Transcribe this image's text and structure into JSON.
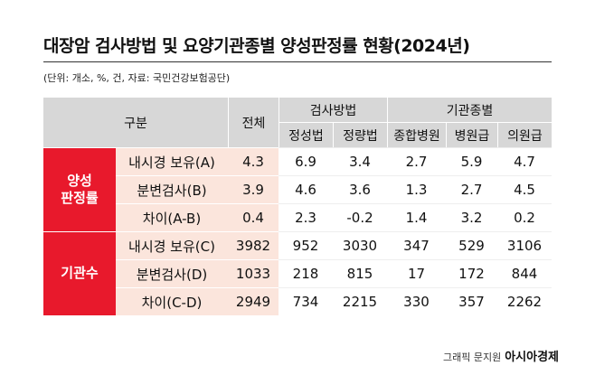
{
  "header": {
    "title": "대장암 검사방법 및 요양기관종별 양성판정률 현황(2024년)",
    "subtitle": "(단위: 개소, %, 건, 자료: 국민건강보험공단)"
  },
  "table": {
    "corner": "구분",
    "total": "전체",
    "groups": [
      {
        "label": "검사방법",
        "columns": [
          "정성법",
          "정량법"
        ]
      },
      {
        "label": "기관종별",
        "columns": [
          "종합병원",
          "병원급",
          "의원급"
        ]
      }
    ],
    "sections": [
      {
        "label": "양성\n판정률",
        "rows": [
          {
            "label": "내시경 보유(A)",
            "values": [
              4.3,
              6.9,
              3.4,
              2.7,
              5.9,
              4.7
            ]
          },
          {
            "label": "분변검사(B)",
            "values": [
              3.9,
              4.6,
              3.6,
              1.3,
              2.7,
              4.5
            ]
          },
          {
            "label": "차이(A-B)",
            "values": [
              0.4,
              2.3,
              -0.2,
              1.4,
              3.2,
              0.2
            ]
          }
        ]
      },
      {
        "label": "기관수",
        "rows": [
          {
            "label": "내시경 보유(C)",
            "values": [
              3982,
              952,
              3030,
              347,
              529,
              3106
            ]
          },
          {
            "label": "분변검사(D)",
            "values": [
              1033,
              218,
              815,
              17,
              172,
              844
            ]
          },
          {
            "label": "차이(C-D)",
            "values": [
              2949,
              734,
              2215,
              330,
              357,
              2262
            ]
          }
        ]
      }
    ]
  },
  "footer": {
    "credit": "그래픽 문지원",
    "brand": "아시아경제"
  }
}
